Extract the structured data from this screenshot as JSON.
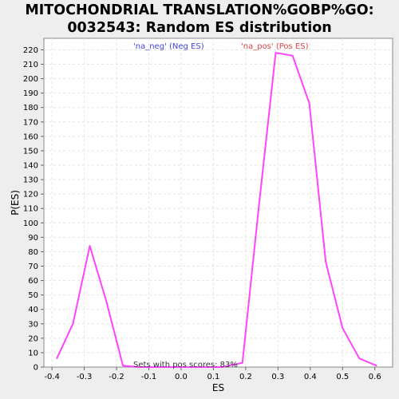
{
  "chart_data": {
    "type": "line",
    "title_lines": [
      "MITOCHONDRIAL TRANSLATION%GOBP%GO:",
      "0032543: Random ES distribution"
    ],
    "xlabel": "ES",
    "ylabel": "P(ES)",
    "xlim": [
      -0.425,
      0.655
    ],
    "ylim": [
      0,
      228
    ],
    "xticks": [
      -0.4,
      -0.3,
      -0.2,
      -0.1,
      0.0,
      0.1,
      0.2,
      0.3,
      0.4,
      0.5,
      0.6
    ],
    "xtick_labels": [
      "-0.4",
      "-0.3",
      "-0.2",
      "-0.1",
      "0.0",
      "0.1",
      "0.2",
      "0.3",
      "0.4",
      "0.5",
      "0.6"
    ],
    "yticks": [
      0,
      10,
      20,
      30,
      40,
      50,
      60,
      70,
      80,
      90,
      100,
      110,
      120,
      130,
      140,
      150,
      160,
      170,
      180,
      190,
      200,
      210,
      220
    ],
    "grid": true,
    "series": [
      {
        "color": "#ff44ff",
        "x": [
          -0.385,
          -0.335,
          -0.283,
          -0.232,
          -0.18,
          -0.13,
          -0.078,
          -0.027,
          0.025,
          0.076,
          0.127,
          0.19,
          0.24,
          0.293,
          0.345,
          0.397,
          0.448,
          0.5,
          0.552,
          0.605
        ],
        "y": [
          6,
          30,
          84,
          46,
          1,
          0,
          0,
          0,
          0,
          0,
          0,
          3,
          110,
          218,
          216,
          183,
          73,
          27,
          6,
          1
        ]
      }
    ],
    "legend": [
      {
        "label": "'na_neg' (Neg ES)",
        "color": "#4444dd"
      },
      {
        "label": "'na_pos' (Pos ES)",
        "color": "#dd4444"
      }
    ],
    "annotation": "Sets with pos scores: 83%"
  }
}
